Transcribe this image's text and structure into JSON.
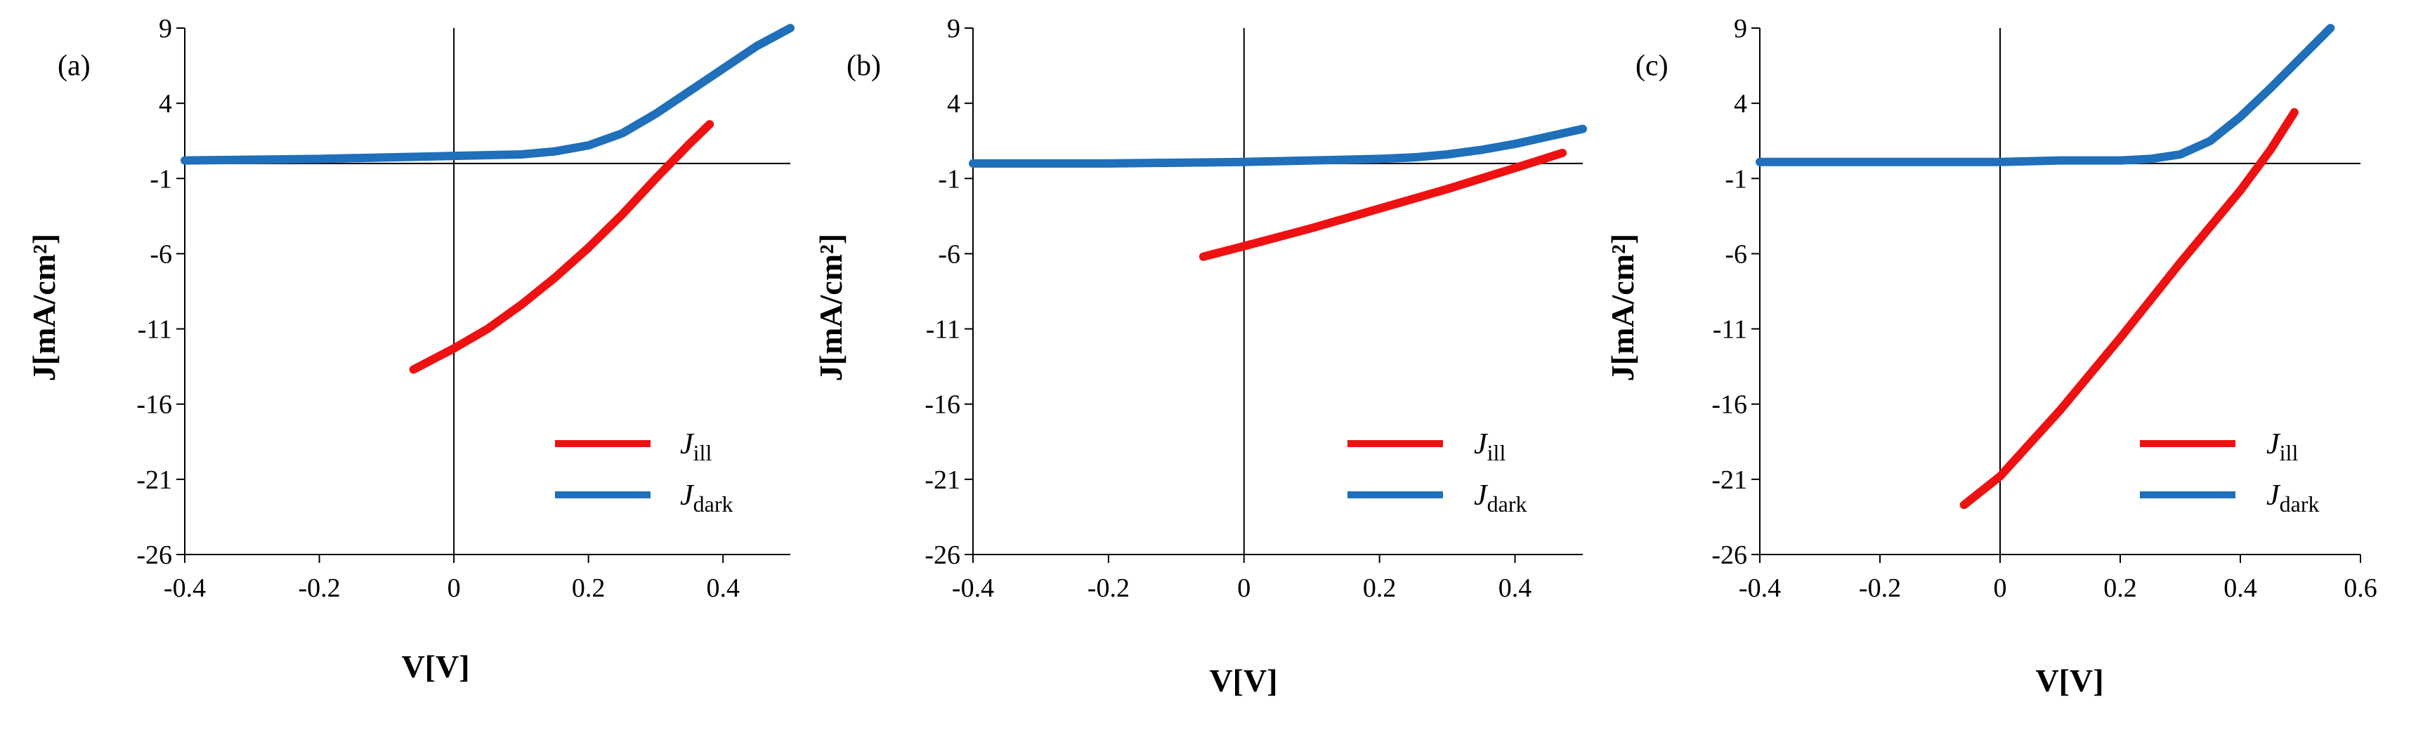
{
  "chart_data": [
    {
      "type": "line",
      "panel_label": "(a)",
      "xlabel": "V[V]",
      "ylabel": "J[mA/cm²]",
      "xlim": [
        -0.4,
        0.5
      ],
      "ylim": [
        -26,
        9
      ],
      "xticks": [
        "-0.4",
        "-0.2",
        "0",
        "0.2",
        "0.4"
      ],
      "xtick_values": [
        -0.4,
        -0.2,
        0,
        0.2,
        0.4
      ],
      "yticks": [
        "-26",
        "-21",
        "-16",
        "-11",
        "-6",
        "-1",
        "4",
        "9"
      ],
      "ytick_values": [
        -26,
        -21,
        -16,
        -11,
        -6,
        -1,
        4,
        9
      ],
      "legend_position": "bottom-right",
      "series": [
        {
          "name": "J_ill",
          "label_main": "J",
          "label_sub": "ill",
          "color": "#ee1111",
          "x": [
            -0.06,
            0.0,
            0.05,
            0.1,
            0.15,
            0.2,
            0.25,
            0.3,
            0.35,
            0.38
          ],
          "y": [
            -13.7,
            -12.3,
            -11.0,
            -9.4,
            -7.6,
            -5.6,
            -3.4,
            -1.0,
            1.3,
            2.6
          ]
        },
        {
          "name": "J_dark",
          "label_main": "J",
          "label_sub": "dark",
          "color": "#1f6fba",
          "x": [
            -0.4,
            -0.2,
            0.0,
            0.1,
            0.15,
            0.2,
            0.25,
            0.3,
            0.35,
            0.4,
            0.45,
            0.5
          ],
          "y": [
            0.2,
            0.3,
            0.5,
            0.6,
            0.8,
            1.2,
            2.0,
            3.3,
            4.8,
            6.3,
            7.8,
            9.0
          ]
        }
      ]
    },
    {
      "type": "line",
      "panel_label": "(b)",
      "xlabel": "V[V]",
      "ylabel": "J[mA/cm²]",
      "xlim": [
        -0.4,
        0.5
      ],
      "ylim": [
        -26,
        9
      ],
      "xticks": [
        "-0.4",
        "-0.2",
        "0",
        "0.2",
        "0.4"
      ],
      "xtick_values": [
        -0.4,
        -0.2,
        0,
        0.2,
        0.4
      ],
      "yticks": [
        "-26",
        "-21",
        "-16",
        "-11",
        "-6",
        "-1",
        "4",
        "9"
      ],
      "ytick_values": [
        -26,
        -21,
        -16,
        -11,
        -6,
        -1,
        4,
        9
      ],
      "legend_position": "bottom-right",
      "series": [
        {
          "name": "J_ill",
          "label_main": "J",
          "label_sub": "ill",
          "color": "#ee1111",
          "x": [
            -0.06,
            0.0,
            0.1,
            0.2,
            0.3,
            0.4,
            0.47
          ],
          "y": [
            -6.2,
            -5.5,
            -4.3,
            -3.0,
            -1.7,
            -0.3,
            0.7
          ]
        },
        {
          "name": "J_dark",
          "label_main": "J",
          "label_sub": "dark",
          "color": "#1f6fba",
          "x": [
            -0.4,
            -0.2,
            0.0,
            0.1,
            0.2,
            0.25,
            0.3,
            0.35,
            0.4,
            0.45,
            0.5
          ],
          "y": [
            0.0,
            0.0,
            0.1,
            0.2,
            0.3,
            0.4,
            0.6,
            0.9,
            1.3,
            1.8,
            2.3
          ]
        }
      ]
    },
    {
      "type": "line",
      "panel_label": "(c)",
      "xlabel": "V[V]",
      "ylabel": "J[mA/cm²]",
      "xlim": [
        -0.4,
        0.6
      ],
      "ylim": [
        -26,
        9
      ],
      "xticks": [
        "-0.4",
        "-0.2",
        "0",
        "0.2",
        "0.4",
        "0.6"
      ],
      "xtick_values": [
        -0.4,
        -0.2,
        0,
        0.2,
        0.4,
        0.6
      ],
      "yticks": [
        "-26",
        "-21",
        "-16",
        "-11",
        "-6",
        "-1",
        "4",
        "9"
      ],
      "ytick_values": [
        -26,
        -21,
        -16,
        -11,
        -6,
        -1,
        4,
        9
      ],
      "legend_position": "bottom-right",
      "series": [
        {
          "name": "J_ill",
          "label_main": "J",
          "label_sub": "ill",
          "color": "#ee1111",
          "x": [
            -0.06,
            0.0,
            0.1,
            0.2,
            0.3,
            0.4,
            0.45,
            0.49
          ],
          "y": [
            -22.7,
            -20.8,
            -16.4,
            -11.6,
            -6.6,
            -1.8,
            0.9,
            3.4
          ]
        },
        {
          "name": "J_dark",
          "label_main": "J",
          "label_sub": "dark",
          "color": "#1f6fba",
          "x": [
            -0.4,
            -0.2,
            0.0,
            0.1,
            0.2,
            0.25,
            0.3,
            0.35,
            0.4,
            0.45,
            0.5,
            0.55
          ],
          "y": [
            0.1,
            0.1,
            0.1,
            0.2,
            0.2,
            0.3,
            0.6,
            1.5,
            3.1,
            5.0,
            7.0,
            9.0
          ]
        }
      ]
    }
  ]
}
